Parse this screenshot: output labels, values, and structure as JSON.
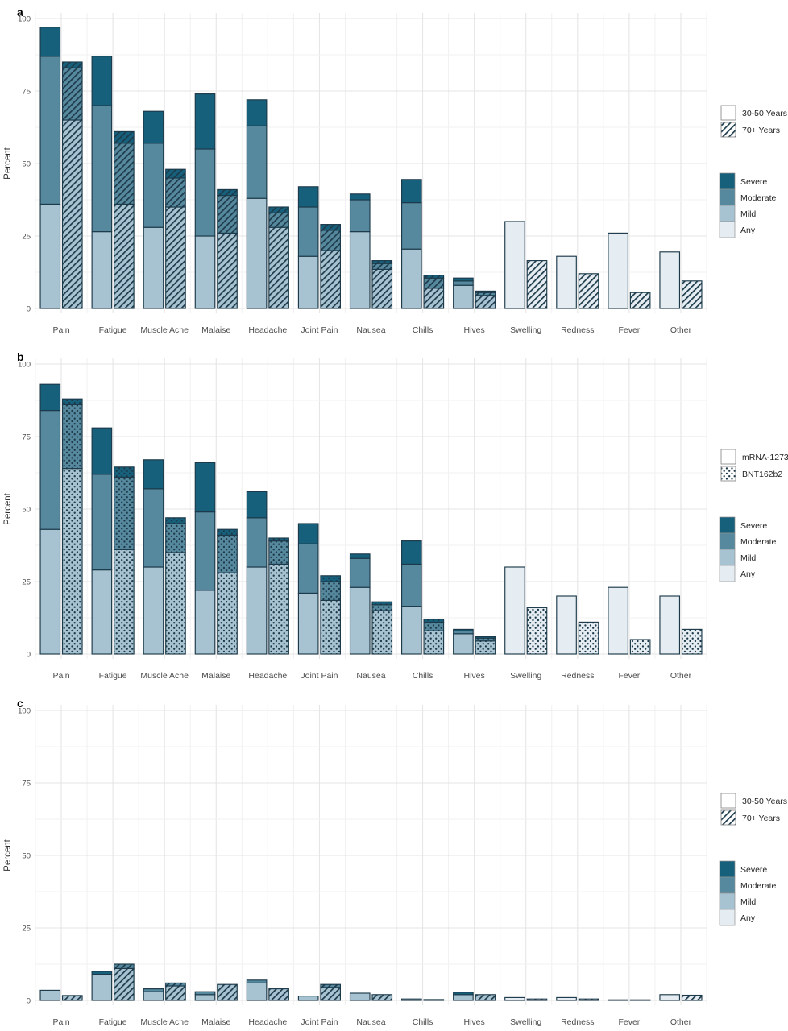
{
  "colors": {
    "severe": "#16607c",
    "moderate": "#56899e",
    "mild": "#a7c3d1",
    "any": "#e5edf2",
    "outline": "#1d3a4a",
    "pattern_mark": "#1d3a4a",
    "grid_major": "#e4e4e4",
    "grid_minor": "#f1f1f1",
    "tick_text": "#4d4d4d",
    "label_text": "#303030",
    "legend_text": "#262626",
    "legend_border": "#8f8f8f"
  },
  "chart_data": {
    "type": "bar",
    "stack_order": [
      "any",
      "mild",
      "moderate",
      "severe"
    ],
    "ylabel": "Percent",
    "ylim": [
      0,
      100
    ],
    "yticks": [
      0,
      25,
      50,
      75,
      100
    ],
    "categories": [
      "Pain",
      "Fatigue",
      "Muscle Ache",
      "Malaise",
      "Headache",
      "Joint Pain",
      "Nausea",
      "Chills",
      "Hives",
      "Swelling",
      "Redness",
      "Fever",
      "Other"
    ],
    "panels": [
      {
        "label": "a",
        "ylabel": "Percent",
        "pattern_legend": [
          {
            "label": "30-50 Years",
            "pattern": "solid"
          },
          {
            "label": "70+ Years",
            "pattern": "hatch"
          }
        ],
        "severity_legend": [
          "Severe",
          "Moderate",
          "Mild",
          "Any"
        ],
        "series": [
          {
            "name": "30-50 Years",
            "pattern": "solid",
            "stacks": [
              {
                "mild": 36,
                "moderate": 51,
                "severe": 10
              },
              {
                "mild": 26.5,
                "moderate": 43.5,
                "severe": 17
              },
              {
                "mild": 28,
                "moderate": 29,
                "severe": 11
              },
              {
                "mild": 25,
                "moderate": 30,
                "severe": 19
              },
              {
                "mild": 38,
                "moderate": 25,
                "severe": 9
              },
              {
                "mild": 18,
                "moderate": 17,
                "severe": 7
              },
              {
                "mild": 26.5,
                "moderate": 11,
                "severe": 2
              },
              {
                "mild": 20.5,
                "moderate": 16,
                "severe": 8
              },
              {
                "mild": 8,
                "moderate": 1.5,
                "severe": 1
              },
              {
                "any": 30
              },
              {
                "any": 18
              },
              {
                "any": 26
              },
              {
                "any": 19.5
              }
            ]
          },
          {
            "name": "70+ Years",
            "pattern": "hatch",
            "stacks": [
              {
                "mild": 65,
                "moderate": 18,
                "severe": 2
              },
              {
                "mild": 36,
                "moderate": 21,
                "severe": 4
              },
              {
                "mild": 35,
                "moderate": 10,
                "severe": 3
              },
              {
                "mild": 26,
                "moderate": 13,
                "severe": 2
              },
              {
                "mild": 28,
                "moderate": 5,
                "severe": 2
              },
              {
                "mild": 20,
                "moderate": 7,
                "severe": 2
              },
              {
                "mild": 13.5,
                "moderate": 2,
                "severe": 1
              },
              {
                "mild": 7,
                "moderate": 3.5,
                "severe": 1
              },
              {
                "mild": 4.5,
                "moderate": 1,
                "severe": 0.5
              },
              {
                "any": 16.5
              },
              {
                "any": 12
              },
              {
                "any": 5.5
              },
              {
                "any": 9.5
              }
            ]
          }
        ]
      },
      {
        "label": "b",
        "ylabel": "Percent",
        "pattern_legend": [
          {
            "label": "mRNA-1273",
            "pattern": "solid"
          },
          {
            "label": "BNT162b2",
            "pattern": "dots"
          }
        ],
        "severity_legend": [
          "Severe",
          "Moderate",
          "Mild",
          "Any"
        ],
        "series": [
          {
            "name": "mRNA-1273",
            "pattern": "solid",
            "stacks": [
              {
                "mild": 43,
                "moderate": 41,
                "severe": 9
              },
              {
                "mild": 29,
                "moderate": 33,
                "severe": 16
              },
              {
                "mild": 30,
                "moderate": 27,
                "severe": 10
              },
              {
                "mild": 22,
                "moderate": 27,
                "severe": 17
              },
              {
                "mild": 30,
                "moderate": 17,
                "severe": 9
              },
              {
                "mild": 21,
                "moderate": 17,
                "severe": 7
              },
              {
                "mild": 23,
                "moderate": 10,
                "severe": 1.5
              },
              {
                "mild": 16.5,
                "moderate": 14.5,
                "severe": 8
              },
              {
                "mild": 7,
                "moderate": 1,
                "severe": 0.5
              },
              {
                "any": 30
              },
              {
                "any": 20
              },
              {
                "any": 23
              },
              {
                "any": 20
              }
            ]
          },
          {
            "name": "BNT162b2",
            "pattern": "dots",
            "stacks": [
              {
                "mild": 64,
                "moderate": 22,
                "severe": 2
              },
              {
                "mild": 36,
                "moderate": 25,
                "severe": 3.5
              },
              {
                "mild": 35,
                "moderate": 10,
                "severe": 2
              },
              {
                "mild": 28,
                "moderate": 13,
                "severe": 2
              },
              {
                "mild": 31,
                "moderate": 8,
                "severe": 1
              },
              {
                "mild": 18.5,
                "moderate": 6.5,
                "severe": 2
              },
              {
                "mild": 15,
                "moderate": 2,
                "severe": 1
              },
              {
                "mild": 8,
                "moderate": 3,
                "severe": 1
              },
              {
                "mild": 4.5,
                "moderate": 1,
                "severe": 0.5
              },
              {
                "any": 16
              },
              {
                "any": 11
              },
              {
                "any": 5
              },
              {
                "any": 8.5
              }
            ]
          }
        ]
      },
      {
        "label": "c",
        "ylabel": "Percent",
        "pattern_legend": [
          {
            "label": "30-50 Years",
            "pattern": "solid"
          },
          {
            "label": "70+ Years",
            "pattern": "hatch"
          }
        ],
        "severity_legend": [
          "Severe",
          "Moderate",
          "Mild",
          "Any"
        ],
        "series": [
          {
            "name": "30-50 Years",
            "pattern": "solid",
            "stacks": [
              {
                "mild": 3.5
              },
              {
                "mild": 9,
                "severe": 1
              },
              {
                "mild": 3,
                "moderate": 1
              },
              {
                "mild": 2,
                "moderate": 1
              },
              {
                "mild": 6,
                "moderate": 1
              },
              {
                "mild": 1.5
              },
              {
                "mild": 2.5
              },
              {
                "mild": 0.5
              },
              {
                "mild": 2,
                "severe": 0.8
              },
              {
                "any": 1
              },
              {
                "any": 1
              },
              {
                "any": 0.2
              },
              {
                "any": 2
              }
            ]
          },
          {
            "name": "70+ Years",
            "pattern": "hatch",
            "stacks": [
              {
                "mild": 1.7
              },
              {
                "mild": 11,
                "moderate": 1.5
              },
              {
                "mild": 5,
                "moderate": 1
              },
              {
                "mild": 5.5
              },
              {
                "mild": 4
              },
              {
                "mild": 4.5,
                "moderate": 1
              },
              {
                "mild": 2
              },
              {
                "mild": 0.3
              },
              {
                "mild": 2
              },
              {
                "any": 0.5
              },
              {
                "any": 0.5
              },
              {
                "any": 0.2
              },
              {
                "any": 1.8
              }
            ]
          }
        ]
      }
    ]
  }
}
